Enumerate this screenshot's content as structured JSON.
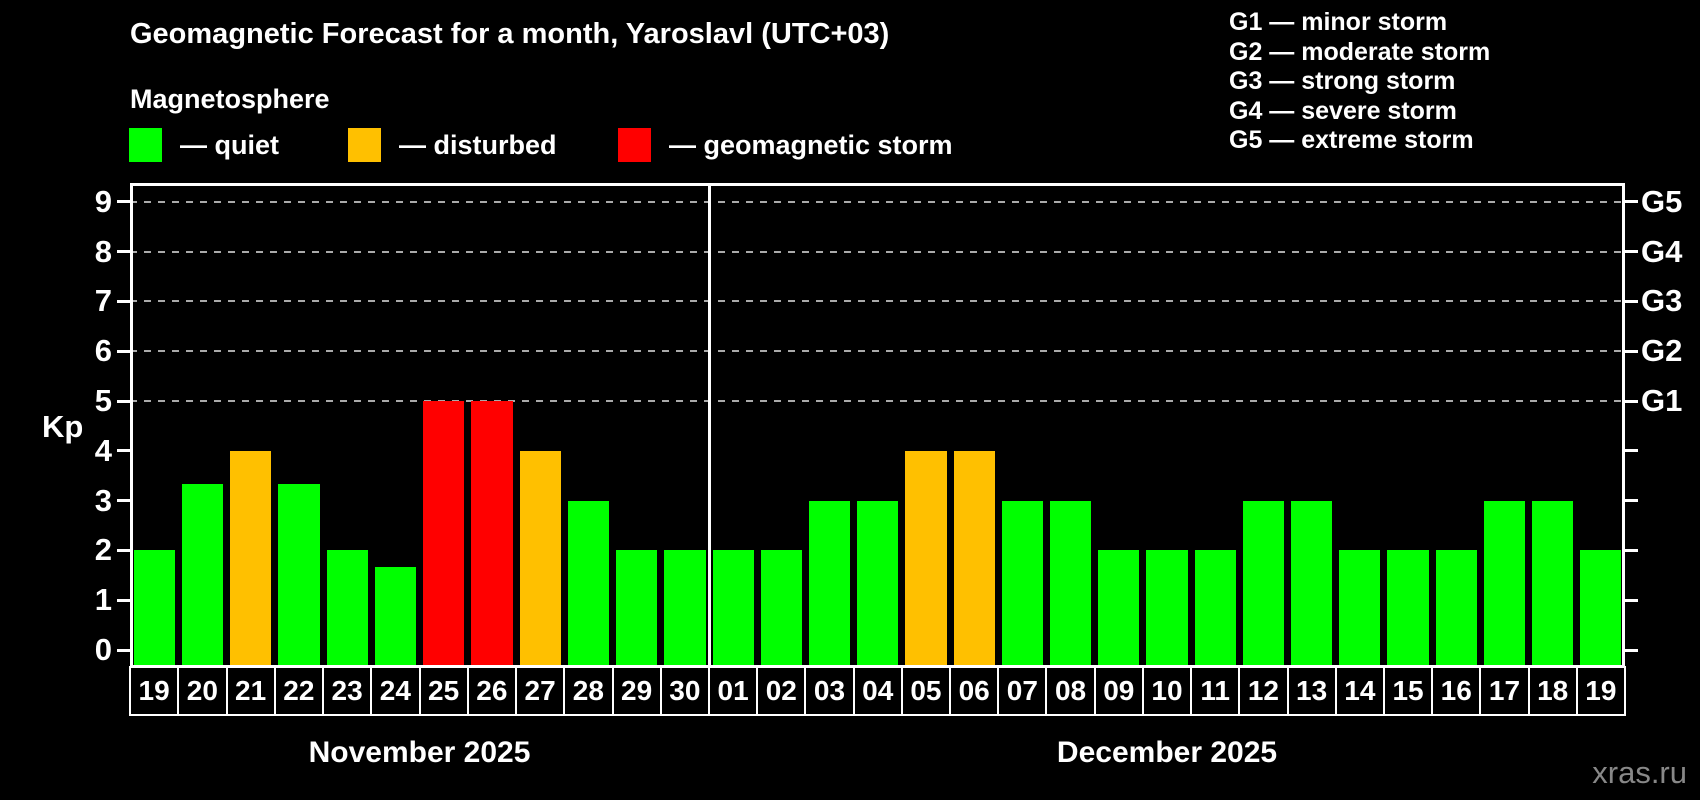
{
  "title": "Geomagnetic Forecast for a month, Yaroslavl (UTC+03)",
  "subtitle": "Magnetosphere",
  "legend": {
    "items": [
      {
        "key": "quiet",
        "label": "— quiet",
        "color": "#00ff00"
      },
      {
        "key": "disturbed",
        "label": "— disturbed",
        "color": "#ffc000"
      },
      {
        "key": "storm",
        "label": "— geomagnetic storm",
        "color": "#ff0000"
      }
    ]
  },
  "g_legend": [
    "G1 — minor storm",
    "G2 — moderate storm",
    "G3 — strong storm",
    "G4 — severe storm",
    "G5 — extreme storm"
  ],
  "watermark": "xras.ru",
  "chart_data": {
    "type": "bar",
    "ylabel": "Kp",
    "ylim": [
      0,
      9
    ],
    "yticks": [
      0,
      1,
      2,
      3,
      4,
      5,
      6,
      7,
      8,
      9
    ],
    "grid": "dashed horizontal at Kp 5-9 only",
    "legend_position": "top",
    "g_lines": [
      {
        "kp": 5,
        "label": "G1"
      },
      {
        "kp": 6,
        "label": "G2"
      },
      {
        "kp": 7,
        "label": "G3"
      },
      {
        "kp": 8,
        "label": "G4"
      },
      {
        "kp": 9,
        "label": "G5"
      }
    ],
    "colors": {
      "quiet": "#00ff00",
      "disturbed": "#ffc000",
      "storm": "#ff0000"
    },
    "months": [
      {
        "label": "November 2025",
        "days": [
          {
            "date": "19",
            "kp": 2,
            "level": "quiet"
          },
          {
            "date": "20",
            "kp": 3.33,
            "level": "quiet"
          },
          {
            "date": "21",
            "kp": 4,
            "level": "disturbed"
          },
          {
            "date": "22",
            "kp": 3.33,
            "level": "quiet"
          },
          {
            "date": "23",
            "kp": 2,
            "level": "quiet"
          },
          {
            "date": "24",
            "kp": 1.67,
            "level": "quiet"
          },
          {
            "date": "25",
            "kp": 5,
            "level": "storm"
          },
          {
            "date": "26",
            "kp": 5,
            "level": "storm"
          },
          {
            "date": "27",
            "kp": 4,
            "level": "disturbed"
          },
          {
            "date": "28",
            "kp": 3,
            "level": "quiet"
          },
          {
            "date": "29",
            "kp": 2,
            "level": "quiet"
          },
          {
            "date": "30",
            "kp": 2,
            "level": "quiet"
          }
        ]
      },
      {
        "label": "December 2025",
        "days": [
          {
            "date": "01",
            "kp": 2,
            "level": "quiet"
          },
          {
            "date": "02",
            "kp": 2,
            "level": "quiet"
          },
          {
            "date": "03",
            "kp": 3,
            "level": "quiet"
          },
          {
            "date": "04",
            "kp": 3,
            "level": "quiet"
          },
          {
            "date": "05",
            "kp": 4,
            "level": "disturbed"
          },
          {
            "date": "06",
            "kp": 4,
            "level": "disturbed"
          },
          {
            "date": "07",
            "kp": 3,
            "level": "quiet"
          },
          {
            "date": "08",
            "kp": 3,
            "level": "quiet"
          },
          {
            "date": "09",
            "kp": 2,
            "level": "quiet"
          },
          {
            "date": "10",
            "kp": 2,
            "level": "quiet"
          },
          {
            "date": "11",
            "kp": 2,
            "level": "quiet"
          },
          {
            "date": "12",
            "kp": 3,
            "level": "quiet"
          },
          {
            "date": "13",
            "kp": 3,
            "level": "quiet"
          },
          {
            "date": "14",
            "kp": 2,
            "level": "quiet"
          },
          {
            "date": "15",
            "kp": 2,
            "level": "quiet"
          },
          {
            "date": "16",
            "kp": 2,
            "level": "quiet"
          },
          {
            "date": "17",
            "kp": 3,
            "level": "quiet"
          },
          {
            "date": "18",
            "kp": 3,
            "level": "quiet"
          },
          {
            "date": "19",
            "kp": 2,
            "level": "quiet"
          }
        ]
      }
    ]
  }
}
